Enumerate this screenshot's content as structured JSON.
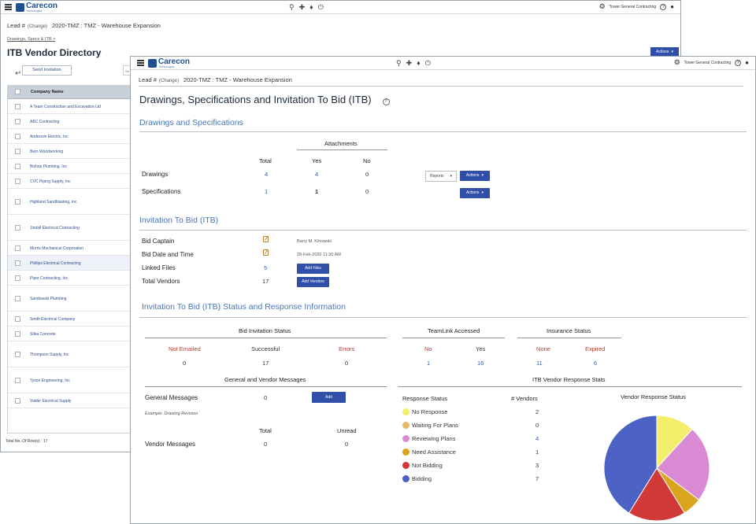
{
  "app": {
    "brand": "Carecon",
    "brand_sub": "Technologies",
    "company": "Tower General Contracting"
  },
  "back": {
    "lead_label": "Lead #",
    "change": "(Change)",
    "project": "2020-TMZ : TMZ - Warehouse Expansion",
    "breadcrumb": "Drawings, Specs & ITB",
    "breadcrumb_sep": ">",
    "title": "ITB Vendor Directory",
    "actions_label": "Actions",
    "send_invitation": "Send Invitation",
    "search_ph": "Se",
    "column_company": "Company Name",
    "vendors": [
      "A Team Construction and Excavation Ltd",
      "ABC Contracting",
      "Anderson Electric, Inc",
      "Bern Woodworking",
      "Bishop Plumbing, Inc",
      "CVC Piping Supply, Inc",
      "Highland Sandblasting, Inc",
      "Jindall Electrical Contracting",
      "Morris Mechanical Corporation",
      "Phillips Electrical Contracting",
      "Piper Contracting, Inc",
      "Sandowski Plumbing",
      "Smith Electrical Company",
      "Stika Concrete",
      "Thompson Supply, Inc",
      "Tyson Engineering, Inc",
      "Valder Electrical Supply"
    ],
    "total_rows": "Total No. Of Row(s) : 17"
  },
  "front": {
    "lead_label": "Lead #",
    "change": "(Change)",
    "project": "2020-TMZ : TMZ - Warehouse Expansion",
    "title": "Drawings, Specifications and Invitation To Bid (ITB)",
    "help": "?",
    "dsec": {
      "heading": "Drawings and Specifications",
      "attachments": "Attachments",
      "total": "Total",
      "yes": "Yes",
      "no": "No",
      "drawings": {
        "label": "Drawings",
        "total": "4",
        "yes": "4",
        "no": "0"
      },
      "specifications": {
        "label": "Specifications",
        "total": "1",
        "yes": "1",
        "no": "0"
      },
      "reports": "Reports",
      "actions": "Actions"
    },
    "itb": {
      "heading": "Invitation To Bid (ITB)",
      "bid_captain": "Bid Captain",
      "bid_captain_val": "Barry M. Kinowski",
      "bid_date": "Bid Date and Time",
      "bid_date_val": "28-Feb-2020  11:30 AM",
      "linked_files": "Linked Files",
      "linked_files_val": "5",
      "total_vendors": "Total Vendors",
      "total_vendors_val": "17",
      "add_files": "Add Files",
      "add_vendors": "Add Vendors"
    },
    "status": {
      "heading": "Invitation To Bid (ITB) Status and Response Information",
      "bis": "Bid Invitation Status",
      "not_emailed": "Not Emailed",
      "not_emailed_val": "0",
      "successful": "Successful",
      "successful_val": "17",
      "errors": "Errors",
      "errors_val": "0",
      "teamlink": "TeamLink Accessed",
      "tl_no": "No",
      "tl_no_val": "1",
      "tl_yes": "Yes",
      "tl_yes_val": "16",
      "insurance": "Insurance Status",
      "ins_none": "None",
      "ins_none_val": "11",
      "ins_expired": "Expired",
      "ins_expired_val": "6",
      "messages": "General and Vendor Messages",
      "general_messages": "General Messages",
      "general_messages_val": "0",
      "add": "Add",
      "example": "Example: Drawing Revision",
      "m_total": "Total",
      "m_unread": "Unread",
      "vendor_messages": "Vendor Messages",
      "vm_total": "0",
      "vm_unread": "0",
      "response_stats": "ITB Vendor Response Stats",
      "response_status": "Response Status",
      "num_vendors": "# Vendors"
    },
    "chart_data": {
      "type": "pie",
      "title": "Vendor Response Status",
      "categories": [
        "No Response",
        "Waiting For Plans",
        "Reviewing Plans",
        "Need Assistance",
        "Not Bidding",
        "Bidding"
      ],
      "values": [
        2,
        0,
        4,
        1,
        3,
        7
      ],
      "colors": [
        "#f4ef6a",
        "#e9b96a",
        "#d98ad3",
        "#d9a51f",
        "#d23a3a",
        "#4c62c4"
      ],
      "legend": "left"
    }
  }
}
